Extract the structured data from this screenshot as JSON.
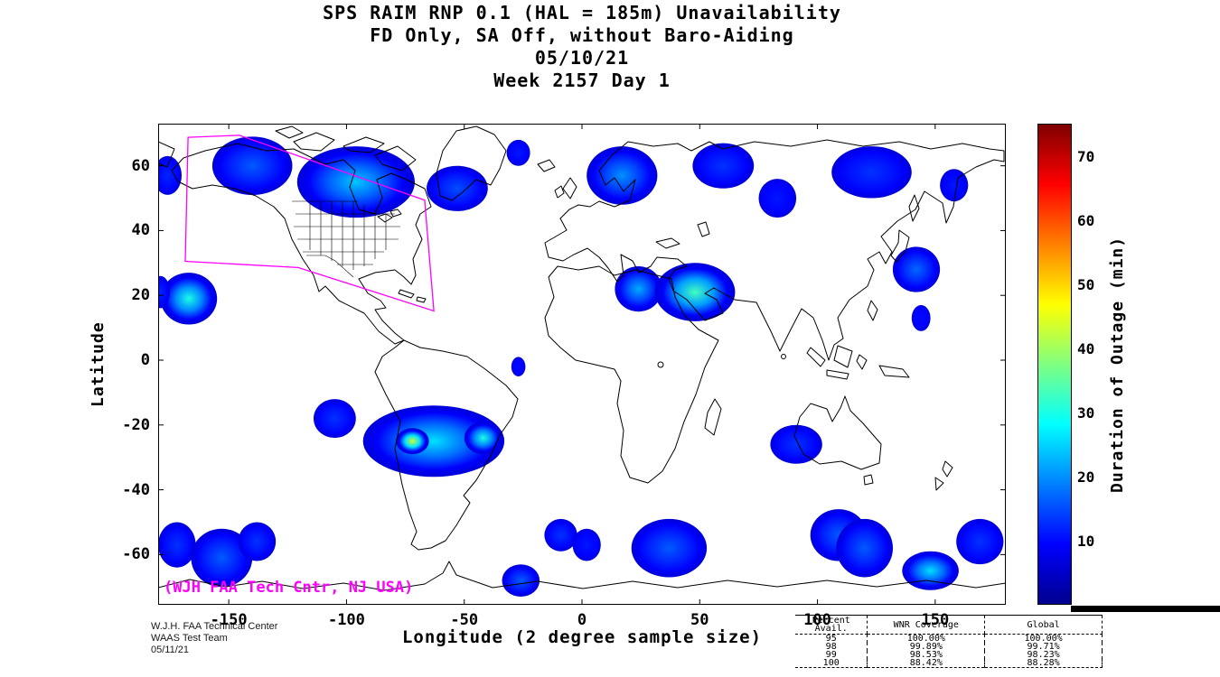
{
  "title": {
    "line1": "SPS RAIM RNP 0.1 (HAL = 185m) Unavailability",
    "line2": "FD Only, SA Off, without Baro-Aiding",
    "line3": "05/10/21",
    "line4": "Week 2157 Day 1"
  },
  "axes": {
    "xlabel": "Longitude (2 degree sample size)",
    "ylabel": "Latitude"
  },
  "colorbar": {
    "label": "Duration of Outage (min)"
  },
  "annotations": {
    "map_credit": "(WJH FAA Tech Cntr, NJ USA)",
    "credit_color": "#FF00FF",
    "boundary_color": "#FF00FF",
    "land_outline_color": "#000000",
    "ocean_color": "#FFFFFF"
  },
  "footer": {
    "org_line1": "W.J.H. FAA Technical Center",
    "org_line2": "WAAS Test Team",
    "org_line3": "05/11/21"
  },
  "stats_table": {
    "header": [
      "Percent Avail.",
      "WNR Coverage",
      "Global"
    ],
    "rows": [
      [
        "95",
        "100.00%",
        "100.00%"
      ],
      [
        "98",
        "99.89%",
        "99.71%"
      ],
      [
        "99",
        "98.53%",
        "98.23%"
      ],
      [
        "100",
        "88.42%",
        "88.28%"
      ]
    ]
  },
  "chart_data": {
    "type": "heatmap",
    "title": "SPS RAIM RNP 0.1 (HAL = 185m) Unavailability",
    "subtitle": "FD Only, SA Off, without Baro-Aiding",
    "date": "05/10/21",
    "week_day": "Week 2157 Day 1",
    "xlabel": "Longitude (2 degree sample size)",
    "ylabel": "Latitude",
    "lon_range": [
      -180,
      180
    ],
    "lat_range": [
      -75.5,
      73
    ],
    "x_ticks": [
      -150,
      -100,
      -50,
      0,
      50,
      100,
      150
    ],
    "y_ticks": [
      -60,
      -40,
      -20,
      0,
      20,
      40,
      60
    ],
    "colorbar_label": "Duration of Outage (min)",
    "colorbar_range": [
      0,
      75
    ],
    "colorbar_ticks": [
      10,
      20,
      30,
      40,
      50,
      60,
      70
    ],
    "colormap": "jet",
    "outage_regions": [
      {
        "lon": -176,
        "lat": 57,
        "rx": 6,
        "ry": 6,
        "peak_min": 12
      },
      {
        "lon": -140,
        "lat": 60,
        "rx": 17,
        "ry": 9,
        "peak_min": 16
      },
      {
        "lon": -96,
        "lat": 55,
        "rx": 25,
        "ry": 11,
        "peak_min": 24
      },
      {
        "lon": -53,
        "lat": 53,
        "rx": 13,
        "ry": 7,
        "peak_min": 15
      },
      {
        "lon": -27,
        "lat": 64,
        "rx": 5,
        "ry": 4,
        "peak_min": 11
      },
      {
        "lon": 17,
        "lat": 57,
        "rx": 15,
        "ry": 9,
        "peak_min": 20
      },
      {
        "lon": 60,
        "lat": 60,
        "rx": 13,
        "ry": 7,
        "peak_min": 13
      },
      {
        "lon": 83,
        "lat": 50,
        "rx": 8,
        "ry": 6,
        "peak_min": 11
      },
      {
        "lon": 123,
        "lat": 58,
        "rx": 17,
        "ry": 8,
        "peak_min": 13
      },
      {
        "lon": 158,
        "lat": 54,
        "rx": 6,
        "ry": 5,
        "peak_min": 11
      },
      {
        "lon": -167,
        "lat": 19,
        "rx": 12,
        "ry": 8,
        "peak_min": 30
      },
      {
        "lon": -179,
        "lat": 21,
        "rx": 4,
        "ry": 5,
        "peak_min": 12
      },
      {
        "lon": 142,
        "lat": 28,
        "rx": 10,
        "ry": 7,
        "peak_min": 17
      },
      {
        "lon": 144,
        "lat": 13,
        "rx": 4,
        "ry": 4,
        "peak_min": 10
      },
      {
        "lon": 24,
        "lat": 22,
        "rx": 10,
        "ry": 7,
        "peak_min": 22
      },
      {
        "lon": 48,
        "lat": 21,
        "rx": 17,
        "ry": 9,
        "peak_min": 33
      },
      {
        "lon": -63,
        "lat": -25,
        "rx": 30,
        "ry": 11,
        "peak_min": 26
      },
      {
        "lon": -72,
        "lat": -25,
        "rx": 7,
        "ry": 4,
        "peak_min": 43
      },
      {
        "lon": -42,
        "lat": -24,
        "rx": 8,
        "ry": 5,
        "peak_min": 30
      },
      {
        "lon": -105,
        "lat": -18,
        "rx": 9,
        "ry": 6,
        "peak_min": 13
      },
      {
        "lon": 91,
        "lat": -26,
        "rx": 11,
        "ry": 6,
        "peak_min": 13
      },
      {
        "lon": -172,
        "lat": -57,
        "rx": 8,
        "ry": 7,
        "peak_min": 13
      },
      {
        "lon": -153,
        "lat": -61,
        "rx": 13,
        "ry": 9,
        "peak_min": 16
      },
      {
        "lon": -138,
        "lat": -56,
        "rx": 8,
        "ry": 6,
        "peak_min": 13
      },
      {
        "lon": -9,
        "lat": -54,
        "rx": 7,
        "ry": 5,
        "peak_min": 13
      },
      {
        "lon": 2,
        "lat": -57,
        "rx": 6,
        "ry": 5,
        "peak_min": 11
      },
      {
        "lon": 37,
        "lat": -58,
        "rx": 16,
        "ry": 9,
        "peak_min": 16
      },
      {
        "lon": 109,
        "lat": -54,
        "rx": 12,
        "ry": 8,
        "peak_min": 16
      },
      {
        "lon": 120,
        "lat": -58,
        "rx": 12,
        "ry": 9,
        "peak_min": 16
      },
      {
        "lon": 169,
        "lat": -56,
        "rx": 10,
        "ry": 7,
        "peak_min": 13
      },
      {
        "lon": 148,
        "lat": -65,
        "rx": 12,
        "ry": 6,
        "peak_min": 26
      },
      {
        "lon": -26,
        "lat": -68,
        "rx": 8,
        "ry": 5,
        "peak_min": 16
      },
      {
        "lon": -27,
        "lat": -2,
        "rx": 3,
        "ry": 3,
        "peak_min": 10
      }
    ],
    "waas_boundary": [
      [
        -167.3,
        68.8
      ],
      [
        -145.5,
        69.4
      ],
      [
        -66.8,
        49.4
      ],
      [
        -62.9,
        15.2
      ],
      [
        -120.5,
        28.6
      ],
      [
        -168.5,
        30.5
      ]
    ]
  }
}
